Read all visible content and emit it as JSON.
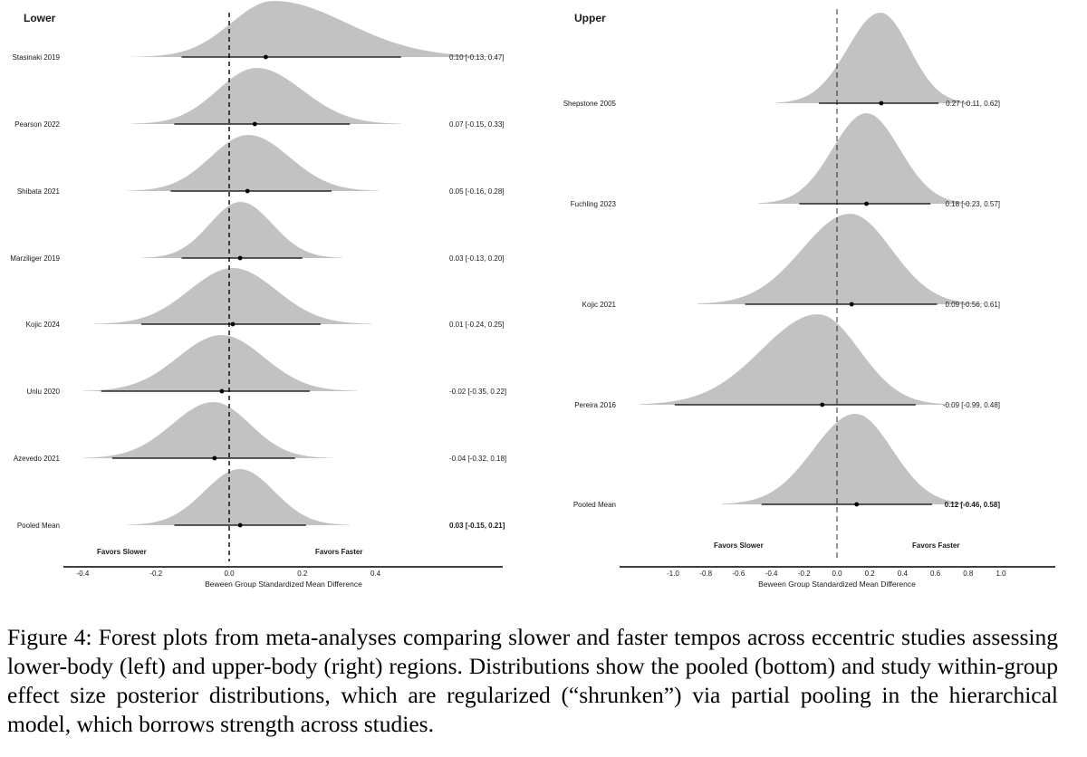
{
  "chart_data": [
    {
      "type": "forest",
      "title": "Lower",
      "xlabel": "Beween Group Standardized Mean Difference",
      "xlim": [
        -0.45,
        0.75
      ],
      "ticks": [
        -0.4,
        -0.2,
        0.0,
        0.2,
        0.4
      ],
      "tick_labels": [
        "-0.4",
        "-0.2",
        "0.0",
        "0.2",
        "0.4"
      ],
      "favors_left": "Favors Slower",
      "favors_right": "Favors Faster",
      "reference_line": 0,
      "studies": [
        {
          "name": "Stasinaki 2019",
          "mean": 0.1,
          "lower": -0.13,
          "upper": 0.47,
          "dist_min": -0.27,
          "dist_max": 0.74,
          "ci_text": "0.10 [-0.13, 0.47]"
        },
        {
          "name": "Pearson 2022",
          "mean": 0.07,
          "lower": -0.15,
          "upper": 0.33,
          "dist_min": -0.27,
          "dist_max": 0.47,
          "ci_text": "0.07 [-0.15, 0.33]"
        },
        {
          "name": "Shibata 2021",
          "mean": 0.05,
          "lower": -0.16,
          "upper": 0.28,
          "dist_min": -0.28,
          "dist_max": 0.41,
          "ci_text": "0.05 [-0.16, 0.28]"
        },
        {
          "name": "Marziliger 2019",
          "mean": 0.03,
          "lower": -0.13,
          "upper": 0.2,
          "dist_min": -0.24,
          "dist_max": 0.31,
          "ci_text": "0.03 [-0.13, 0.20]"
        },
        {
          "name": "Kojic 2024",
          "mean": 0.01,
          "lower": -0.24,
          "upper": 0.25,
          "dist_min": -0.37,
          "dist_max": 0.39,
          "ci_text": "0.01 [-0.24, 0.25]"
        },
        {
          "name": "Unlu 2020",
          "mean": -0.02,
          "lower": -0.35,
          "upper": 0.22,
          "dist_min": -0.4,
          "dist_max": 0.35,
          "ci_text": "-0.02 [-0.35, 0.22]"
        },
        {
          "name": "Azevedo 2021",
          "mean": -0.04,
          "lower": -0.32,
          "upper": 0.18,
          "dist_min": -0.4,
          "dist_max": 0.28,
          "ci_text": "-0.04 [-0.32, 0.18]"
        },
        {
          "name": "Pooled Mean",
          "mean": 0.03,
          "lower": -0.15,
          "upper": 0.21,
          "dist_min": -0.28,
          "dist_max": 0.33,
          "ci_text": "0.03 [-0.15, 0.21]",
          "pooled": true
        }
      ]
    },
    {
      "type": "forest",
      "title": "Upper",
      "xlabel": "Beween Group Standardized Mean Difference",
      "xlim": [
        -1.2,
        1.3
      ],
      "ticks": [
        -1.0,
        -0.8,
        -0.6,
        -0.4,
        -0.2,
        0.0,
        0.2,
        0.4,
        0.6,
        0.8,
        1.0
      ],
      "tick_labels": [
        "-1.0",
        "-0.8",
        "-0.6",
        "-0.4",
        "-0.2",
        "0.0",
        "0.2",
        "0.4",
        "0.6",
        "0.8",
        "1.0"
      ],
      "favors_left": "Favors Slower",
      "favors_right": "Favors Faster",
      "reference_line": 0,
      "studies": [
        {
          "name": "Shepstone 2005",
          "mean": 0.27,
          "lower": -0.11,
          "upper": 0.62,
          "dist_min": -0.37,
          "dist_max": 0.84,
          "ci_text": "0.27 [-0.11, 0.62]"
        },
        {
          "name": "Fuchling 2023",
          "mean": 0.18,
          "lower": -0.23,
          "upper": 0.57,
          "dist_min": -0.48,
          "dist_max": 0.83,
          "ci_text": "0.18 [-0.23, 0.57]"
        },
        {
          "name": "Kojic 2021",
          "mean": 0.09,
          "lower": -0.56,
          "upper": 0.61,
          "dist_min": -0.85,
          "dist_max": 0.9,
          "ci_text": "0.09 [-0.56, 0.61]"
        },
        {
          "name": "Pereira 2016",
          "mean": -0.09,
          "lower": -0.99,
          "upper": 0.48,
          "dist_min": -1.2,
          "dist_max": 0.71,
          "ci_text": "-0.09 [-0.99, 0.48]"
        },
        {
          "name": "Pooled Mean",
          "mean": 0.12,
          "lower": -0.46,
          "upper": 0.58,
          "dist_min": -0.7,
          "dist_max": 0.84,
          "ci_text": "0.12 [-0.46, 0.58]",
          "pooled": true
        }
      ]
    }
  ],
  "caption": "Figure 4: Forest plots from meta-analyses comparing slower and faster tempos across eccentric studies assessing lower-body (left) and upper-body (right) regions. Distributions show the pooled (bottom) and study within-group effect size posterior distributions, which are regularized (“shrunken”) via partial pooling in the hierarchical model, which borrows strength across studies.",
  "colors": {
    "density_fill": "#c2c2c2",
    "line": "#000000",
    "text": "#1a1a1a"
  }
}
